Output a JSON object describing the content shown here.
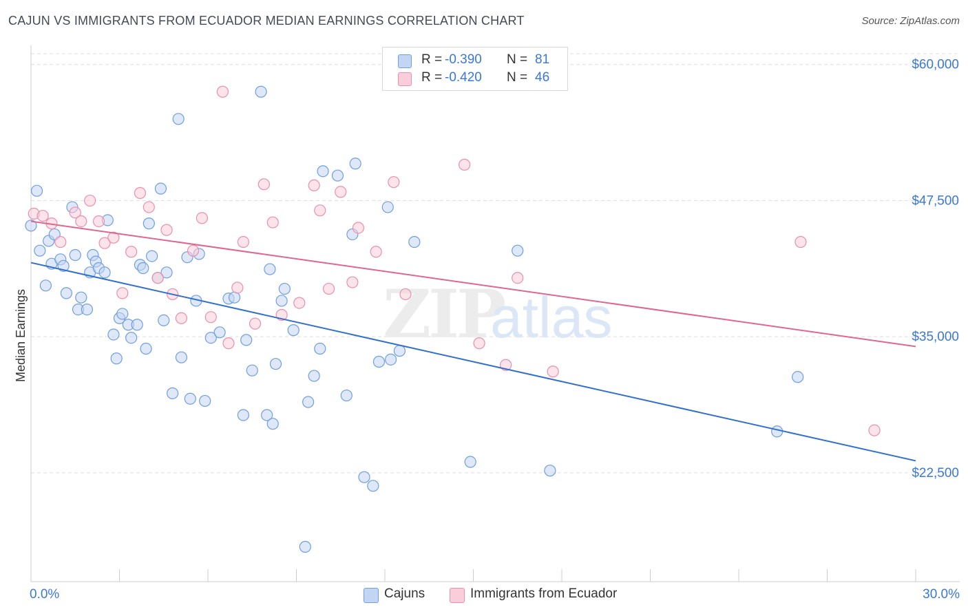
{
  "title": "CAJUN VS IMMIGRANTS FROM ECUADOR MEDIAN EARNINGS CORRELATION CHART",
  "source": "Source: ZipAtlas.com",
  "watermark": {
    "zip": "ZIP",
    "atlas": "atlas"
  },
  "colors": {
    "blue_fill": "#c2d6f3",
    "blue_edge": "#6e9ee0",
    "blue_line": "#2f6fd0",
    "pink_fill": "#f9cdd9",
    "pink_edge": "#e98fab",
    "pink_line": "#e0658f",
    "tick_text": "#3a78d4",
    "grid": "#dddddd"
  },
  "legend": {
    "rows": [
      {
        "label": "R =",
        "r_value": "-0.390",
        "n_label": "N =",
        "n_value": "81"
      },
      {
        "label": "R =",
        "r_value": "-0.420",
        "n_label": "N =",
        "n_value": "46"
      }
    ]
  },
  "bottom_legend": {
    "series1": "Cajuns",
    "series2": "Immigrants from Ecuador"
  },
  "chart_data": {
    "type": "scatter",
    "title": "CAJUN VS IMMIGRANTS FROM ECUADOR MEDIAN EARNINGS CORRELATION CHART",
    "xlabel": "",
    "ylabel": "Median Earnings",
    "xlim": [
      0,
      30
    ],
    "ylim": [
      12500,
      61500
    ],
    "x_tick_labels": [
      "0.0%",
      "30.0%"
    ],
    "y_ticks": [
      22500,
      35000,
      47500,
      60000
    ],
    "y_tick_labels": [
      "$22,500",
      "$35,000",
      "$47,500",
      "$60,000"
    ],
    "grid": true,
    "legend_position": "top-center",
    "series": [
      {
        "name": "Cajuns",
        "r": -0.39,
        "n": 81,
        "trend": {
          "x": [
            0,
            30
          ],
          "y": [
            41800,
            23600
          ]
        },
        "points": [
          {
            "x": 0.0,
            "y": 45200
          },
          {
            "x": 0.2,
            "y": 48400
          },
          {
            "x": 0.3,
            "y": 42900
          },
          {
            "x": 0.5,
            "y": 39700
          },
          {
            "x": 0.6,
            "y": 43800
          },
          {
            "x": 0.7,
            "y": 41700
          },
          {
            "x": 0.8,
            "y": 44400
          },
          {
            "x": 1.0,
            "y": 42100
          },
          {
            "x": 1.1,
            "y": 41500
          },
          {
            "x": 1.2,
            "y": 39000
          },
          {
            "x": 1.4,
            "y": 46900
          },
          {
            "x": 1.5,
            "y": 42500
          },
          {
            "x": 1.6,
            "y": 37500
          },
          {
            "x": 1.7,
            "y": 38600
          },
          {
            "x": 1.9,
            "y": 37500
          },
          {
            "x": 2.0,
            "y": 40900
          },
          {
            "x": 2.1,
            "y": 42500
          },
          {
            "x": 2.2,
            "y": 41900
          },
          {
            "x": 2.3,
            "y": 41300
          },
          {
            "x": 2.5,
            "y": 40900
          },
          {
            "x": 2.6,
            "y": 45700
          },
          {
            "x": 2.8,
            "y": 35200
          },
          {
            "x": 2.9,
            "y": 33000
          },
          {
            "x": 3.0,
            "y": 36700
          },
          {
            "x": 3.1,
            "y": 37100
          },
          {
            "x": 3.3,
            "y": 36100
          },
          {
            "x": 3.4,
            "y": 34900
          },
          {
            "x": 3.6,
            "y": 36100
          },
          {
            "x": 3.7,
            "y": 41600
          },
          {
            "x": 3.8,
            "y": 41300
          },
          {
            "x": 3.9,
            "y": 33900
          },
          {
            "x": 4.0,
            "y": 45400
          },
          {
            "x": 4.1,
            "y": 42400
          },
          {
            "x": 4.3,
            "y": 40400
          },
          {
            "x": 4.4,
            "y": 48600
          },
          {
            "x": 4.5,
            "y": 36500
          },
          {
            "x": 4.6,
            "y": 40900
          },
          {
            "x": 4.8,
            "y": 29800
          },
          {
            "x": 5.0,
            "y": 55000
          },
          {
            "x": 5.1,
            "y": 33100
          },
          {
            "x": 5.3,
            "y": 42300
          },
          {
            "x": 5.4,
            "y": 29300
          },
          {
            "x": 5.6,
            "y": 38300
          },
          {
            "x": 5.7,
            "y": 42600
          },
          {
            "x": 5.9,
            "y": 29100
          },
          {
            "x": 6.1,
            "y": 34900
          },
          {
            "x": 6.4,
            "y": 35400
          },
          {
            "x": 6.7,
            "y": 38500
          },
          {
            "x": 6.9,
            "y": 38600
          },
          {
            "x": 7.2,
            "y": 27800
          },
          {
            "x": 7.3,
            "y": 34700
          },
          {
            "x": 7.5,
            "y": 31900
          },
          {
            "x": 7.8,
            "y": 57500
          },
          {
            "x": 8.0,
            "y": 27800
          },
          {
            "x": 8.1,
            "y": 41200
          },
          {
            "x": 8.2,
            "y": 27000
          },
          {
            "x": 8.3,
            "y": 32500
          },
          {
            "x": 8.5,
            "y": 38300
          },
          {
            "x": 8.6,
            "y": 39400
          },
          {
            "x": 8.9,
            "y": 35600
          },
          {
            "x": 9.3,
            "y": 15700
          },
          {
            "x": 9.4,
            "y": 29000
          },
          {
            "x": 9.6,
            "y": 31400
          },
          {
            "x": 9.8,
            "y": 33900
          },
          {
            "x": 9.9,
            "y": 50200
          },
          {
            "x": 10.4,
            "y": 49800
          },
          {
            "x": 10.7,
            "y": 29600
          },
          {
            "x": 10.9,
            "y": 44400
          },
          {
            "x": 11.0,
            "y": 50900
          },
          {
            "x": 11.3,
            "y": 22100
          },
          {
            "x": 11.6,
            "y": 21300
          },
          {
            "x": 11.8,
            "y": 32700
          },
          {
            "x": 12.1,
            "y": 46900
          },
          {
            "x": 12.2,
            "y": 32900
          },
          {
            "x": 12.5,
            "y": 33700
          },
          {
            "x": 13.0,
            "y": 43700
          },
          {
            "x": 14.9,
            "y": 23500
          },
          {
            "x": 16.5,
            "y": 42900
          },
          {
            "x": 17.6,
            "y": 22700
          },
          {
            "x": 25.3,
            "y": 26300
          },
          {
            "x": 26.0,
            "y": 31300
          }
        ]
      },
      {
        "name": "Immigrants from Ecuador",
        "r": -0.42,
        "n": 46,
        "trend": {
          "x": [
            0,
            30
          ],
          "y": [
            45600,
            34100
          ]
        },
        "points": [
          {
            "x": 0.1,
            "y": 46300
          },
          {
            "x": 0.4,
            "y": 46100
          },
          {
            "x": 0.7,
            "y": 45400
          },
          {
            "x": 1.0,
            "y": 43700
          },
          {
            "x": 1.5,
            "y": 46400
          },
          {
            "x": 1.7,
            "y": 45600
          },
          {
            "x": 2.0,
            "y": 47500
          },
          {
            "x": 2.3,
            "y": 45600
          },
          {
            "x": 2.5,
            "y": 43600
          },
          {
            "x": 2.8,
            "y": 44100
          },
          {
            "x": 3.1,
            "y": 39000
          },
          {
            "x": 3.4,
            "y": 42800
          },
          {
            "x": 3.7,
            "y": 48200
          },
          {
            "x": 4.0,
            "y": 46900
          },
          {
            "x": 4.3,
            "y": 40400
          },
          {
            "x": 4.6,
            "y": 44800
          },
          {
            "x": 4.8,
            "y": 38900
          },
          {
            "x": 5.1,
            "y": 36700
          },
          {
            "x": 5.5,
            "y": 42900
          },
          {
            "x": 5.8,
            "y": 45900
          },
          {
            "x": 6.1,
            "y": 36800
          },
          {
            "x": 6.5,
            "y": 57500
          },
          {
            "x": 6.7,
            "y": 34400
          },
          {
            "x": 7.0,
            "y": 39500
          },
          {
            "x": 7.2,
            "y": 43700
          },
          {
            "x": 7.6,
            "y": 36200
          },
          {
            "x": 7.9,
            "y": 49000
          },
          {
            "x": 8.2,
            "y": 45500
          },
          {
            "x": 8.5,
            "y": 37000
          },
          {
            "x": 9.1,
            "y": 38100
          },
          {
            "x": 9.6,
            "y": 48900
          },
          {
            "x": 9.8,
            "y": 46600
          },
          {
            "x": 10.1,
            "y": 39400
          },
          {
            "x": 10.5,
            "y": 48300
          },
          {
            "x": 10.9,
            "y": 40000
          },
          {
            "x": 11.1,
            "y": 45000
          },
          {
            "x": 11.7,
            "y": 42800
          },
          {
            "x": 12.3,
            "y": 49200
          },
          {
            "x": 12.7,
            "y": 38900
          },
          {
            "x": 14.7,
            "y": 50800
          },
          {
            "x": 15.2,
            "y": 34400
          },
          {
            "x": 16.1,
            "y": 32400
          },
          {
            "x": 16.5,
            "y": 40400
          },
          {
            "x": 17.7,
            "y": 31800
          },
          {
            "x": 26.1,
            "y": 43700
          },
          {
            "x": 28.6,
            "y": 26400
          }
        ]
      }
    ]
  }
}
